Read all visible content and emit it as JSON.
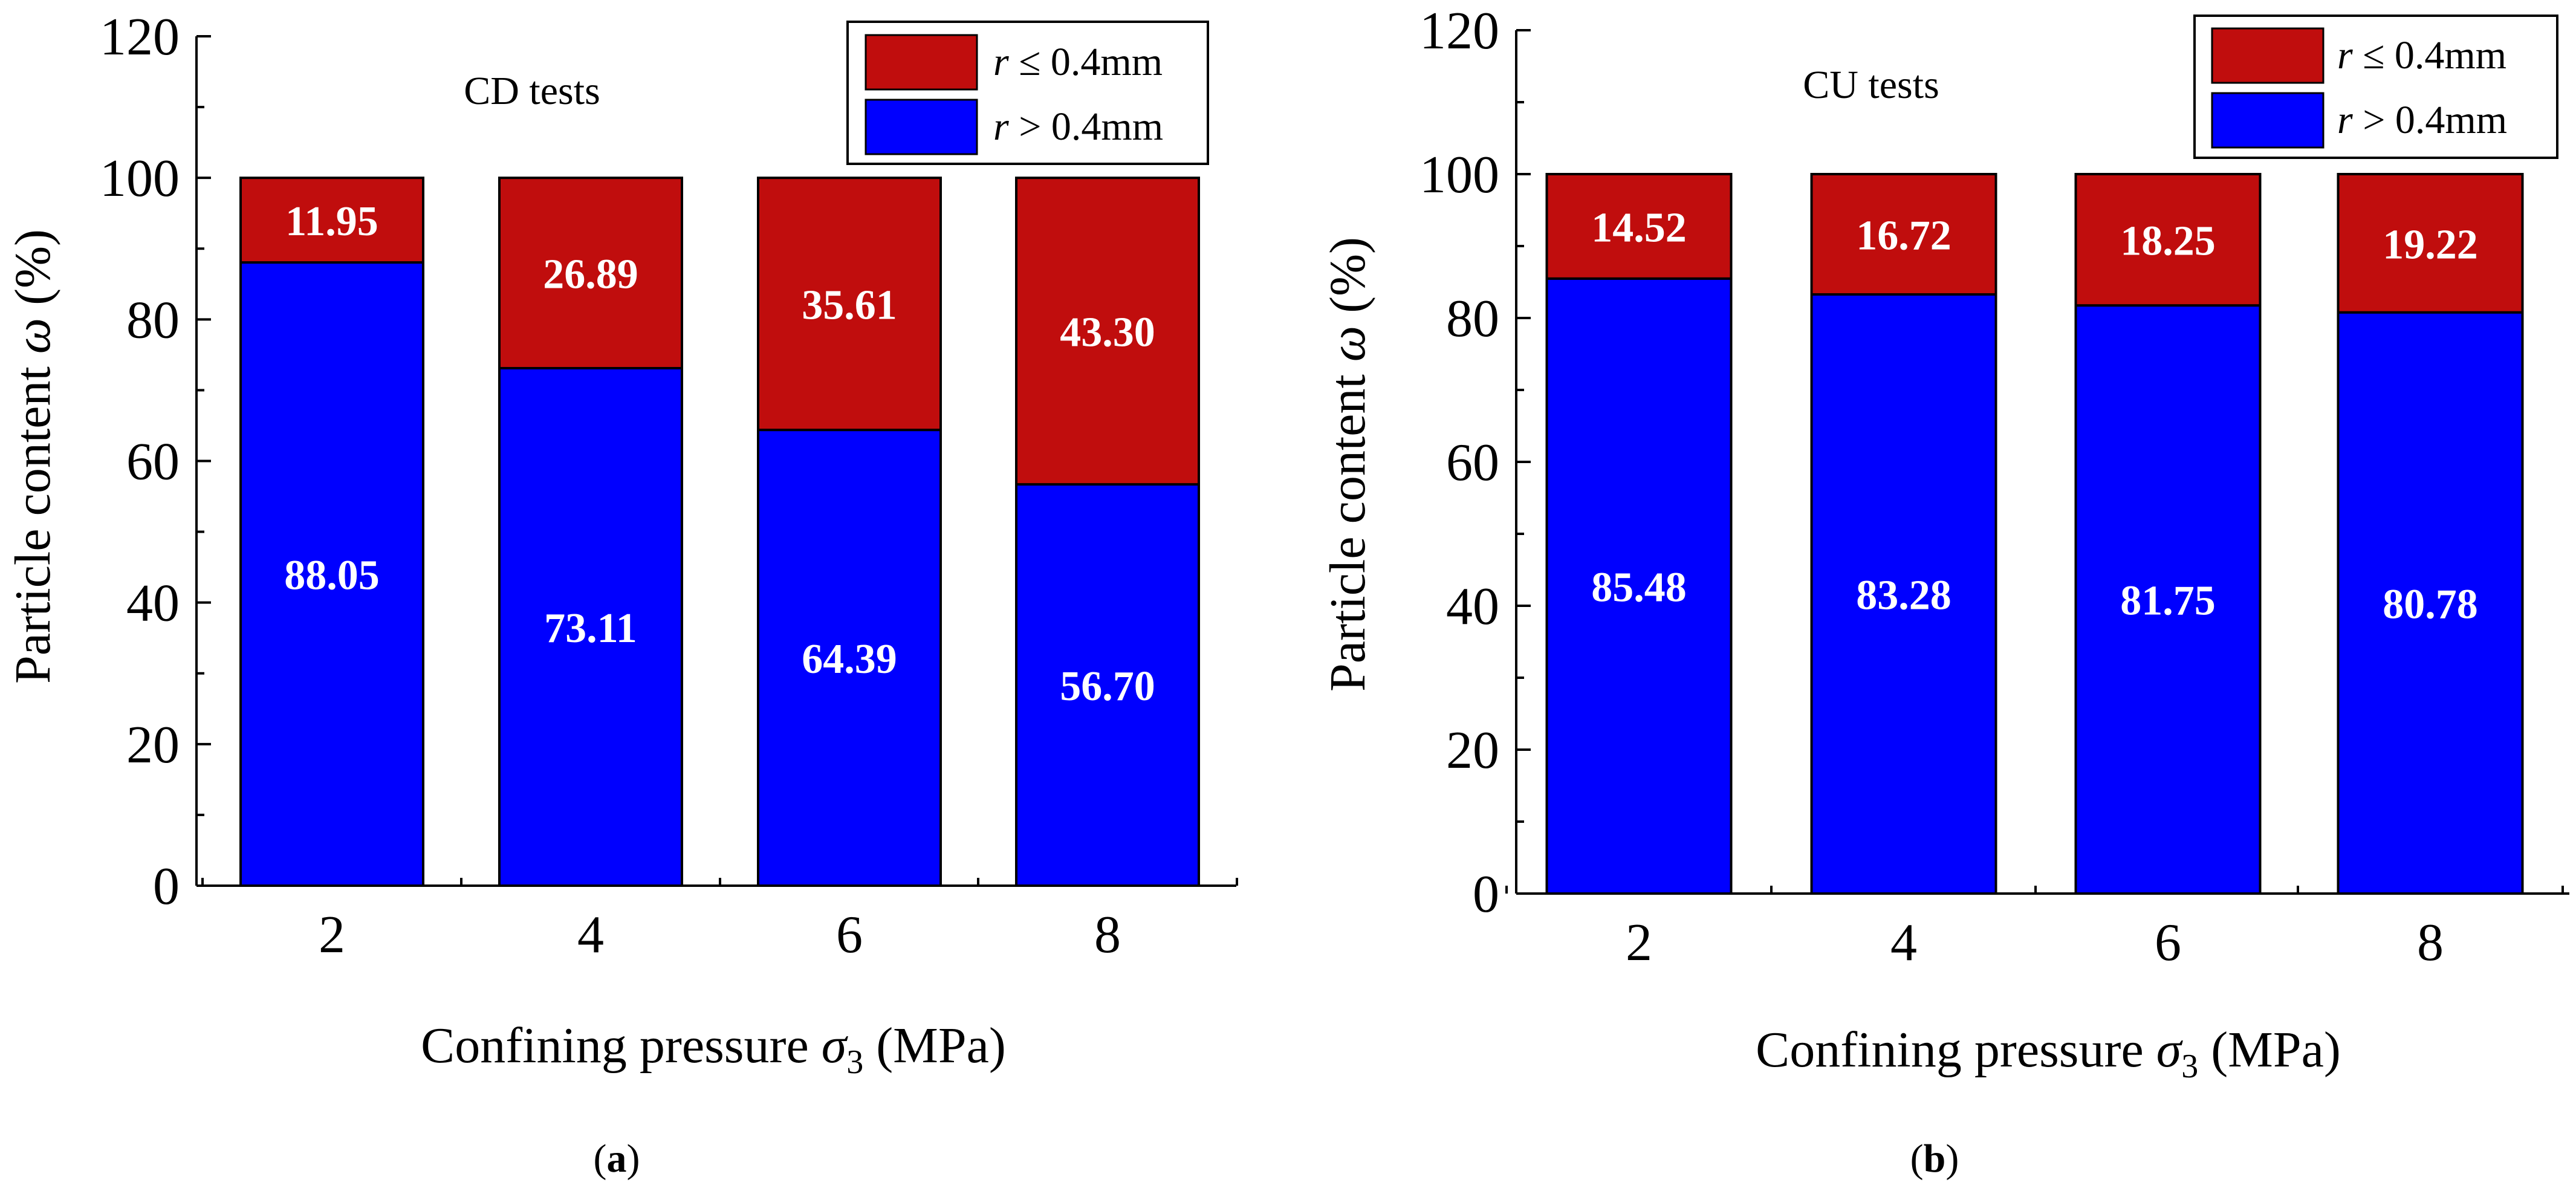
{
  "colors": {
    "lower_series": "#0000ff",
    "upper_series": "#c00d0d",
    "axis": "#000000",
    "label_text": "#ffffff"
  },
  "panels": [
    {
      "panel_label": "a",
      "annotation": "CD tests",
      "legend": {
        "upper": {
          "var": "r",
          "rest": " ≤ 0.4mm"
        },
        "lower": {
          "var": "r",
          "rest": " > 0.4mm"
        }
      },
      "axes": {
        "ylabel_prefix": "Particle content ",
        "ylabel_symbol": "ω",
        "ylabel_suffix": " (%)",
        "xlabel_prefix": "Confining pressure ",
        "xlabel_symbol": "σ",
        "xlabel_subscript": "3",
        "xlabel_suffix": " (MPa)"
      }
    },
    {
      "panel_label": "b",
      "annotation": "CU tests",
      "legend": {
        "upper": {
          "var": "r",
          "rest": " ≤ 0.4mm"
        },
        "lower": {
          "var": "r",
          "rest": " > 0.4mm"
        }
      },
      "axes": {
        "ylabel_prefix": "Particle content ",
        "ylabel_symbol": "ω",
        "ylabel_suffix": " (%)",
        "xlabel_prefix": "Confining pressure ",
        "xlabel_symbol": "σ",
        "xlabel_subscript": "3",
        "xlabel_suffix": " (MPa)"
      }
    }
  ],
  "chart_data": [
    {
      "type": "bar",
      "stacked": true,
      "title": "CD tests",
      "xlabel": "Confining pressure σ3 (MPa)",
      "ylabel": "Particle content ω (%)",
      "ylim": [
        0,
        120
      ],
      "yticks": [
        "0",
        "20",
        "40",
        "60",
        "80",
        "100",
        "120"
      ],
      "categories": [
        "2",
        "4",
        "6",
        "8"
      ],
      "legend_position": "top-right",
      "series": [
        {
          "name": "r > 0.4mm",
          "values": [
            88.05,
            73.11,
            64.39,
            56.7
          ],
          "labels": [
            "88.05",
            "73.11",
            "64.39",
            "56.70"
          ]
        },
        {
          "name": "r ≤ 0.4mm",
          "values": [
            11.95,
            26.89,
            35.61,
            43.3
          ],
          "labels": [
            "11.95",
            "26.89",
            "35.61",
            "43.30"
          ]
        }
      ]
    },
    {
      "type": "bar",
      "stacked": true,
      "title": "CU tests",
      "xlabel": "Confining pressure σ3 (MPa)",
      "ylabel": "Particle content ω (%)",
      "ylim": [
        0,
        120
      ],
      "yticks": [
        "0",
        "20",
        "40",
        "60",
        "80",
        "100",
        "120"
      ],
      "categories": [
        "2",
        "4",
        "6",
        "8"
      ],
      "legend_position": "top-right",
      "series": [
        {
          "name": "r > 0.4mm",
          "values": [
            85.48,
            83.28,
            81.75,
            80.78
          ],
          "labels": [
            "85.48",
            "83.28",
            "81.75",
            "80.78"
          ]
        },
        {
          "name": "r ≤ 0.4mm",
          "values": [
            14.52,
            16.72,
            18.25,
            19.22
          ],
          "labels": [
            "14.52",
            "16.72",
            "18.25",
            "19.22"
          ]
        }
      ]
    }
  ]
}
